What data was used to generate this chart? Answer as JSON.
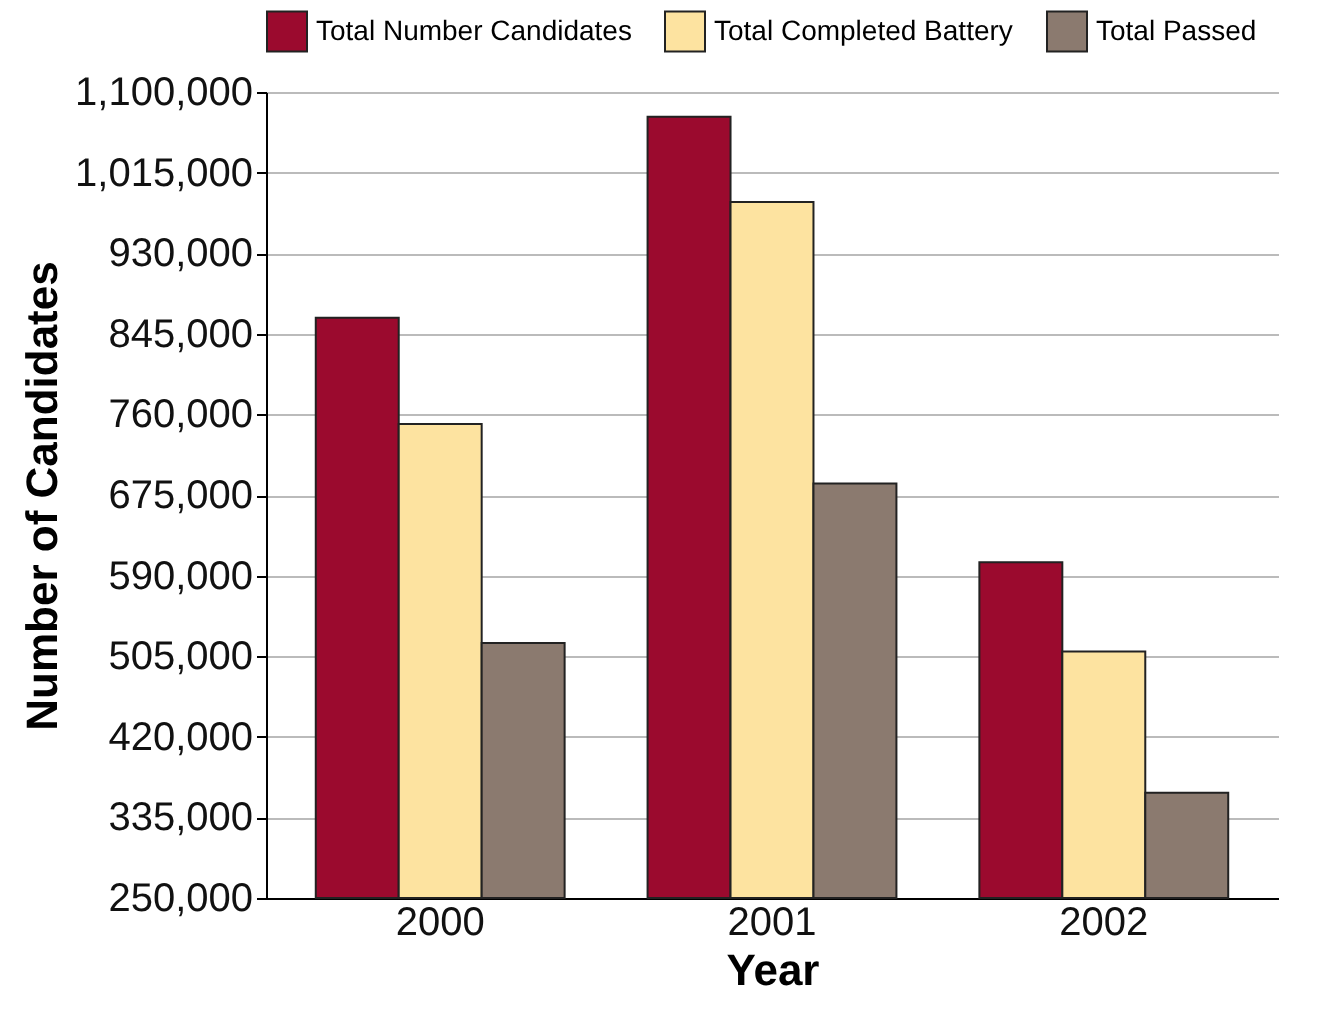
{
  "chart_data": {
    "type": "bar",
    "xlabel": "Year",
    "ylabel": "Number of Candidates",
    "categories": [
      "2000",
      "2001",
      "2002"
    ],
    "series": [
      {
        "name": "Total Number Candidates",
        "color": "#9b0a2e",
        "values": [
          862000,
          1074000,
          604000
        ]
      },
      {
        "name": "Total Completed Battery",
        "color": "#fde3a0",
        "values": [
          750000,
          984000,
          510000
        ]
      },
      {
        "name": "Total Passed",
        "color": "#8b7a6f",
        "values": [
          519000,
          687000,
          361000
        ]
      }
    ],
    "ylim": [
      250000,
      1100000
    ],
    "yticks": [
      {
        "value": 250000,
        "label": "250,000"
      },
      {
        "value": 335000,
        "label": "335,000"
      },
      {
        "value": 420000,
        "label": "420,000"
      },
      {
        "value": 505000,
        "label": "505,000"
      },
      {
        "value": 590000,
        "label": "590,000"
      },
      {
        "value": 675000,
        "label": "675,000"
      },
      {
        "value": 760000,
        "label": "760,000"
      },
      {
        "value": 845000,
        "label": "845,000"
      },
      {
        "value": 930000,
        "label": "930,000"
      },
      {
        "value": 1015000,
        "label": "1,015,000"
      },
      {
        "value": 1100000,
        "label": "1,100,000"
      }
    ],
    "grid": "y",
    "legend": "top"
  }
}
